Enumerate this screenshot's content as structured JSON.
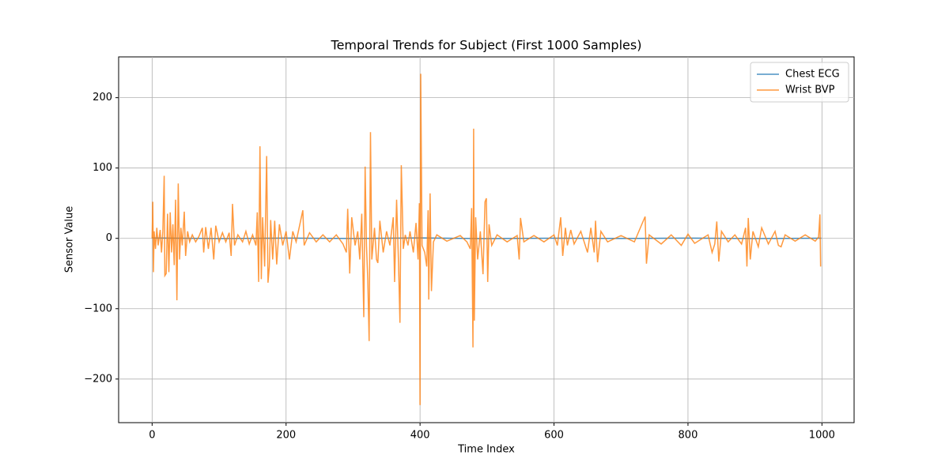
{
  "chart_data": {
    "type": "line",
    "title": "Temporal Trends for Subject (First 1000 Samples)",
    "x_label": "Time Index",
    "y_label": "Sensor Value",
    "xlim": [
      -50,
      1048
    ],
    "ylim": [
      -262,
      258
    ],
    "xticks": [
      0,
      200,
      400,
      600,
      800,
      1000
    ],
    "yticks": [
      -200,
      -100,
      0,
      100,
      200
    ],
    "grid": true,
    "legend": "upper right",
    "series": [
      {
        "name": "Chest ECG",
        "color": "#1f77b4",
        "x": [
          0,
          100,
          200,
          300,
          400,
          500,
          600,
          700,
          800,
          900,
          999
        ],
        "values": [
          0.5,
          -0.3,
          0.4,
          -0.2,
          0.6,
          -0.4,
          0.3,
          -0.2,
          0.4,
          -0.3,
          0.2
        ]
      },
      {
        "name": "Wrist BVP",
        "color": "#ff7f0e",
        "x": [
          0,
          1,
          2,
          3,
          5,
          7,
          9,
          12,
          14,
          16,
          18,
          19,
          21,
          23,
          25,
          27,
          29,
          31,
          33,
          35,
          37,
          39,
          41,
          43,
          45,
          48,
          50,
          53,
          56,
          60,
          65,
          70,
          75,
          77,
          80,
          84,
          88,
          92,
          95,
          100,
          105,
          110,
          115,
          118,
          120,
          123,
          128,
          135,
          140,
          145,
          150,
          155,
          157,
          159,
          161,
          163,
          165,
          168,
          171,
          173,
          175,
          177,
          180,
          183,
          186,
          190,
          195,
          200,
          205,
          210,
          215,
          225,
          227,
          235,
          245,
          255,
          265,
          275,
          285,
          290,
          292,
          295,
          298,
          303,
          307,
          310,
          313,
          316,
          318,
          320,
          322,
          324,
          326,
          328,
          332,
          335,
          337,
          340,
          345,
          350,
          355,
          360,
          362,
          365,
          368,
          370,
          372,
          375,
          378,
          382,
          385,
          390,
          394,
          397,
          399,
          400,
          401,
          403,
          407,
          410,
          412,
          413,
          415,
          417,
          420,
          425,
          440,
          460,
          470,
          475,
          477,
          479,
          480,
          481,
          483,
          486,
          490,
          494,
          497,
          499,
          501,
          503,
          507,
          515,
          530,
          545,
          548,
          550,
          555,
          570,
          585,
          600,
          605,
          610,
          613,
          617,
          620,
          625,
          630,
          640,
          650,
          655,
          660,
          662,
          665,
          670,
          680,
          700,
          720,
          736,
          738,
          742,
          760,
          775,
          790,
          800,
          810,
          830,
          836,
          840,
          843,
          846,
          850,
          860,
          870,
          880,
          886,
          888,
          890,
          893,
          897,
          905,
          910,
          920,
          930,
          935,
          939,
          945,
          960,
          975,
          990,
          995,
          997,
          998
        ],
        "values": [
          0,
          52,
          -48,
          10,
          -15,
          15,
          -10,
          12,
          -20,
          10,
          89,
          -53,
          -50,
          35,
          -48,
          37,
          -20,
          20,
          -38,
          55,
          -88,
          78,
          -30,
          15,
          -10,
          38,
          -25,
          10,
          -5,
          5,
          -5,
          3,
          15,
          -20,
          16,
          -15,
          15,
          -30,
          18,
          -5,
          8,
          -5,
          8,
          -25,
          49,
          -10,
          5,
          -5,
          10,
          -8,
          5,
          -10,
          37,
          -62,
          131,
          -58,
          30,
          -40,
          117,
          -63,
          -40,
          26,
          -30,
          25,
          -37,
          20,
          -10,
          10,
          -30,
          10,
          -5,
          40,
          -10,
          8,
          -5,
          5,
          -5,
          5,
          -8,
          -20,
          42,
          -50,
          30,
          -10,
          10,
          -30,
          35,
          -112,
          102,
          -10,
          -60,
          -146,
          151,
          -30,
          15,
          -30,
          -35,
          25,
          -20,
          10,
          -10,
          30,
          -62,
          55,
          -40,
          -120,
          104,
          -15,
          5,
          -10,
          10,
          -20,
          22,
          -30,
          50,
          -237,
          234,
          -10,
          -20,
          -40,
          40,
          -87,
          64,
          -75,
          -5,
          5,
          -4,
          4,
          -5,
          -15,
          43,
          -155,
          156,
          -117,
          30,
          -30,
          10,
          -51,
          52,
          57,
          -62,
          20,
          -10,
          5,
          -5,
          4,
          -30,
          29,
          -5,
          4,
          -5,
          5,
          -10,
          30,
          -25,
          15,
          -10,
          12,
          -8,
          10,
          -20,
          15,
          -20,
          25,
          -34,
          10,
          -5,
          4,
          -5,
          31,
          -36,
          5,
          -8,
          5,
          -10,
          6,
          -7,
          5,
          -20,
          -8,
          24,
          -33,
          10,
          -5,
          5,
          -8,
          15,
          -40,
          29,
          -30,
          10,
          -12,
          15,
          -8,
          10,
          -10,
          -12,
          5,
          -4,
          5,
          -4,
          2,
          34,
          -40
        ]
      }
    ]
  }
}
